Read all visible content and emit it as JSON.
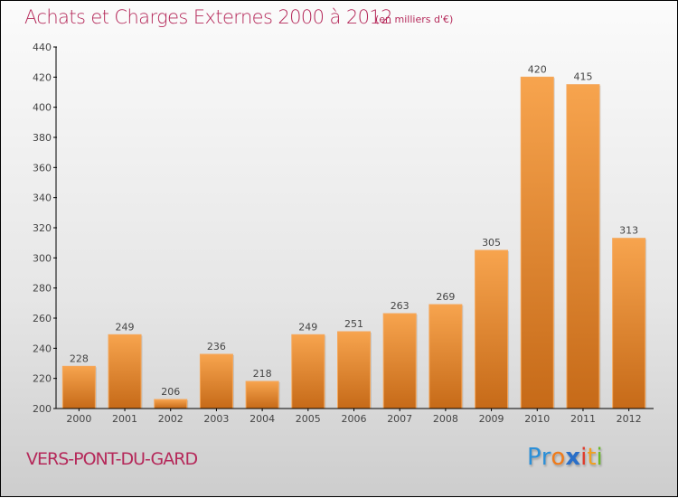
{
  "header": {
    "title": "Achats et Charges Externes 2000 à 2012",
    "subtitle": "(en milliers d'€)"
  },
  "footer": {
    "commune": "VERS-PONT-DU-GARD",
    "logo": {
      "letters": [
        {
          "char": "P",
          "color": "#2a8fd8"
        },
        {
          "char": "r",
          "color": "#2a8fd8"
        },
        {
          "char": "o",
          "color": "#f07b1a"
        },
        {
          "char": "x",
          "color": "#2a6fc8"
        },
        {
          "char": "i",
          "color": "#e03a2a"
        },
        {
          "char": "t",
          "color": "#f0a020"
        },
        {
          "char": "i",
          "color": "#6ab82a"
        }
      ]
    }
  },
  "colors": {
    "title": "#b5295a",
    "bar_top": "#f7a44e",
    "bar_bottom": "#c66a18",
    "axis": "#000000",
    "text": "#444444"
  },
  "chart_data": {
    "type": "bar",
    "title": "Achats et Charges Externes 2000 à 2012",
    "subtitle": "(en milliers d'€)",
    "xlabel": "",
    "ylabel": "",
    "categories": [
      "2000",
      "2001",
      "2002",
      "2003",
      "2004",
      "2005",
      "2006",
      "2007",
      "2008",
      "2009",
      "2010",
      "2011",
      "2012"
    ],
    "values": [
      228,
      249,
      206,
      236,
      218,
      249,
      251,
      263,
      269,
      305,
      420,
      415,
      313
    ],
    "ylim": [
      200,
      440
    ],
    "yticks": [
      200,
      220,
      240,
      260,
      280,
      300,
      320,
      340,
      360,
      380,
      400,
      420,
      440
    ],
    "grid": false,
    "data_labels": true
  }
}
